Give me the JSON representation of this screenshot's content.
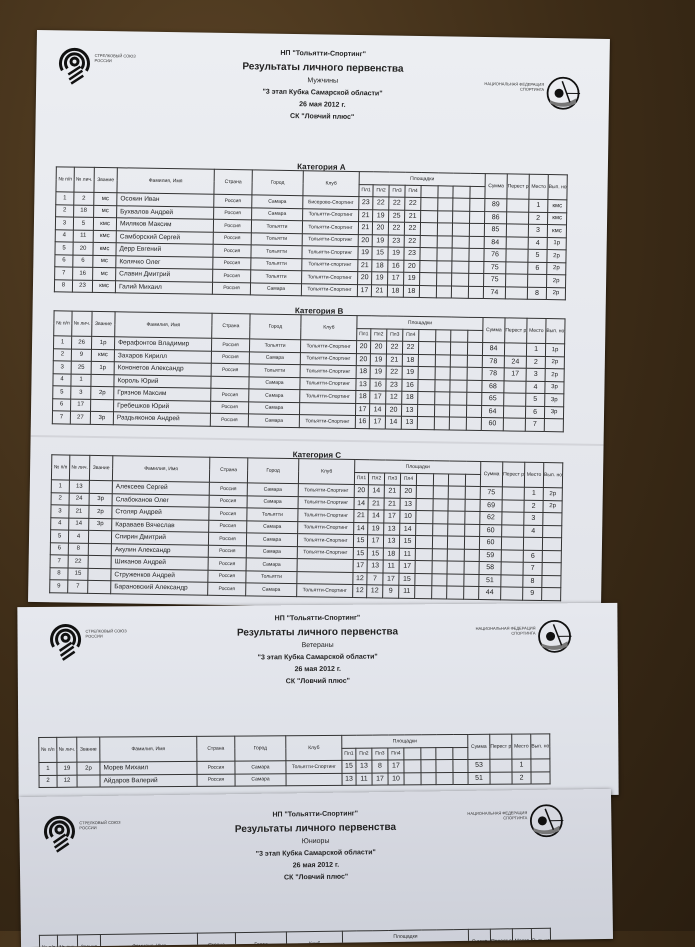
{
  "columns": {
    "n": "№ п/п",
    "lic": "№ лич.",
    "rank": "Звание",
    "name": "Фамилия, Имя",
    "country": "Страна",
    "city": "Город",
    "club": "Клуб",
    "areas": "Площадки",
    "p1": "Пл1",
    "p2": "Пл2",
    "p3": "Пл3",
    "p4": "Пл4",
    "sum": "Сумма",
    "shootoff": "Перест релка",
    "place": "Место",
    "norm": "Вып. норма"
  },
  "logos": {
    "left_text": "СТРЕЛКОВЫЙ СОЮЗ РОССИИ",
    "right_text": "НАЦИОНАЛЬНАЯ ФЕДЕРАЦИЯ СПОРТИНГА"
  },
  "documents": [
    {
      "org": "НП \"Тольятти-Спортинг\"",
      "title": "Результаты личного первенства",
      "group": "Мужчины",
      "event": "\"3 этап Кубка Самарской области\"",
      "date": "26 мая 2012 г.",
      "venue": "СК \"Ловчий плюс\"",
      "categories": [
        {
          "name": "Категория А",
          "rows": [
            [
              "1",
              "2",
              "мс",
              "Осокин Иван",
              "Россия",
              "Самара",
              "Бисерово-Спортинг",
              [
                "23",
                "22",
                "22",
                "22"
              ],
              "89",
              "",
              "1",
              "кмс"
            ],
            [
              "2",
              "18",
              "мс",
              "Бухвалов Андрей",
              "Россия",
              "Самара",
              "Тольятти-Спортинг",
              [
                "21",
                "19",
                "25",
                "21"
              ],
              "86",
              "",
              "2",
              "кмс"
            ],
            [
              "3",
              "5",
              "кмс",
              "Миляков Максим",
              "Россия",
              "Тольятти",
              "Тольятти-Спортинг",
              [
                "21",
                "20",
                "22",
                "22"
              ],
              "85",
              "",
              "3",
              "кмс"
            ],
            [
              "4",
              "11",
              "кмс",
              "Самборский Сергей",
              "Россия",
              "Тольятти",
              "Тольятти-Спортинг",
              [
                "20",
                "19",
                "23",
                "22"
              ],
              "84",
              "",
              "4",
              "1р"
            ],
            [
              "5",
              "20",
              "кмс",
              "Дерр Евгений",
              "Россия",
              "Тольятти",
              "Тольятти-Спортинг",
              [
                "19",
                "15",
                "19",
                "23"
              ],
              "76",
              "",
              "5",
              "2р"
            ],
            [
              "6",
              "6",
              "мс",
              "Колячко Олег",
              "Россия",
              "Тольятти",
              "Тольятти-спортинг",
              [
                "21",
                "18",
                "16",
                "20"
              ],
              "75",
              "",
              "6",
              "2р"
            ],
            [
              "7",
              "16",
              "мс",
              "Славин Дмитрий",
              "Россия",
              "Тольятти",
              "Тольятти-Спортинг",
              [
                "20",
                "19",
                "17",
                "19"
              ],
              "75",
              "",
              "",
              "2р"
            ],
            [
              "8",
              "23",
              "кмс",
              "Галий Михаил",
              "Россия",
              "Самара",
              "Тольятти-Спортинг",
              [
                "17",
                "21",
                "18",
                "18"
              ],
              "74",
              "",
              "8",
              "2р"
            ]
          ]
        },
        {
          "name": "Категория В",
          "rows": [
            [
              "1",
              "26",
              "1р",
              "Ферафонтов Владимир",
              "Россия",
              "Тольятти",
              "Тольятти-Спортинг",
              [
                "20",
                "20",
                "22",
                "22"
              ],
              "84",
              "",
              "1",
              "1р"
            ],
            [
              "2",
              "9",
              "кмс",
              "Захаров Кирилл",
              "Россия",
              "Самара",
              "Тольятти-Спортинг",
              [
                "20",
                "19",
                "21",
                "18"
              ],
              "78",
              "24",
              "2",
              "2р"
            ],
            [
              "3",
              "25",
              "1р",
              "Кононетов Александр",
              "Россия",
              "Тольятти",
              "Тольятти-Спортинг",
              [
                "18",
                "19",
                "22",
                "19"
              ],
              "78",
              "17",
              "3",
              "2р"
            ],
            [
              "4",
              "1",
              "",
              "Король Юрий",
              "",
              "Самара",
              "Тольятти-Спортинг",
              [
                "13",
                "16",
                "23",
                "16"
              ],
              "68",
              "",
              "4",
              "3р"
            ],
            [
              "5",
              "3",
              "2р",
              "Грязнов Максим",
              "Россия",
              "Самара",
              "Тольятти-Спортинг",
              [
                "18",
                "17",
                "12",
                "18"
              ],
              "65",
              "",
              "5",
              "3р"
            ],
            [
              "6",
              "17",
              "",
              "Гребешков Юрий",
              "Россия",
              "Самара",
              "",
              [
                "17",
                "14",
                "20",
                "13"
              ],
              "64",
              "",
              "6",
              "3р"
            ],
            [
              "7",
              "27",
              "3р",
              "Раздьяконов Андрей",
              "Россия",
              "Самара",
              "Тольятти-Спортинг",
              [
                "16",
                "17",
                "14",
                "13"
              ],
              "60",
              "",
              "7",
              ""
            ]
          ]
        },
        {
          "name": "Категория С",
          "rows": [
            [
              "1",
              "13",
              "",
              "Алексеев Сергей",
              "Россия",
              "Самара",
              "Тольятти-Спортинг",
              [
                "20",
                "14",
                "21",
                "20"
              ],
              "75",
              "",
              "1",
              "2р"
            ],
            [
              "2",
              "24",
              "3р",
              "Слабоканов Олег",
              "Россия",
              "Самара",
              "Тольятти-Спортинг",
              [
                "14",
                "21",
                "21",
                "13"
              ],
              "69",
              "",
              "2",
              "2р"
            ],
            [
              "3",
              "21",
              "2р",
              "Столяр Андрей",
              "Россия",
              "Тольятти",
              "Тольятти-Спортинг",
              [
                "21",
                "14",
                "17",
                "10"
              ],
              "62",
              "",
              "3",
              ""
            ],
            [
              "4",
              "14",
              "3р",
              "Караваев Вячеслав",
              "Россия",
              "Самара",
              "Тольятти-Спортинг",
              [
                "14",
                "19",
                "13",
                "14"
              ],
              "60",
              "",
              "4",
              ""
            ],
            [
              "5",
              "4",
              "",
              "Спирин Дмитрий",
              "Россия",
              "Самара",
              "Тольятти-Спортинг",
              [
                "15",
                "17",
                "13",
                "15"
              ],
              "60",
              "",
              "",
              ""
            ],
            [
              "6",
              "8",
              "",
              "Акулин Александр",
              "Россия",
              "Самара",
              "Тольятти-Спортинг",
              [
                "15",
                "15",
                "18",
                "11"
              ],
              "59",
              "",
              "6",
              ""
            ],
            [
              "7",
              "22",
              "",
              "Шиканов Андрей",
              "Россия",
              "Самара",
              "",
              [
                "17",
                "13",
                "11",
                "17"
              ],
              "58",
              "",
              "7",
              ""
            ],
            [
              "8",
              "15",
              "",
              "Струженков Андрей",
              "Россия",
              "Тольятти",
              "",
              [
                "12",
                "7",
                "17",
                "15"
              ],
              "51",
              "",
              "8",
              ""
            ],
            [
              "9",
              "7",
              "",
              "Барановский Александр",
              "Россия",
              "Самара",
              "Тольятти-Спортинг",
              [
                "12",
                "12",
                "9",
                "11"
              ],
              "44",
              "",
              "9",
              ""
            ]
          ]
        }
      ]
    },
    {
      "org": "НП \"Тольятти-Спортинг\"",
      "title": "Результаты личного первенства",
      "group": "Ветераны",
      "event": "\"3 этап Кубка Самарской области\"",
      "date": "26 мая 2012 г.",
      "venue": "СК \"Ловчий плюс\"",
      "categories": [
        {
          "name": "",
          "rows": [
            [
              "1",
              "19",
              "2р",
              "Морев Михаил",
              "Россия",
              "Самара",
              "Тольятти-Спортинг",
              [
                "15",
                "13",
                "8",
                "17"
              ],
              "53",
              "",
              "1",
              ""
            ],
            [
              "2",
              "12",
              "",
              "Айдаров Валерий",
              "Россия",
              "Самара",
              "",
              [
                "13",
                "11",
                "17",
                "10"
              ],
              "51",
              "",
              "2",
              ""
            ]
          ]
        }
      ]
    },
    {
      "org": "НП \"Тольятти-Спортинг\"",
      "title": "Результаты личного первенства",
      "group": "Юниоры",
      "event": "\"3 этап Кубка Самарской области\"",
      "date": "26 мая 2012 г.",
      "venue": "СК \"Ловчий плюс\"",
      "categories": [
        {
          "name": "",
          "rows": []
        }
      ]
    }
  ]
}
